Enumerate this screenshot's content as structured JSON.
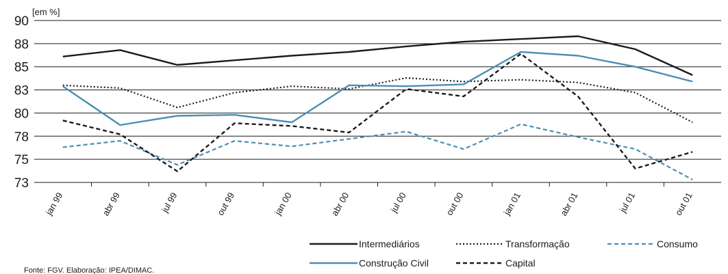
{
  "chart_data": {
    "type": "line",
    "unit_label": "[em %]",
    "categories": [
      "jan 99",
      "abr 99",
      "jul 99",
      "out 99",
      "jan 00",
      "abr 00",
      "jul 00",
      "out 00",
      "jan 01",
      "abr 01",
      "jul 01",
      "out 01"
    ],
    "ylim": [
      72.5,
      90
    ],
    "y_ticks": [
      90,
      88,
      85,
      83,
      80,
      78,
      75,
      73
    ],
    "y_tick_values": [
      90,
      87.5,
      85,
      82.5,
      80,
      77.5,
      75,
      72.5
    ],
    "grid": true,
    "series": [
      {
        "name": "Intermediários",
        "color": "#1a1a1a",
        "dash": "solid",
        "width": 2.4,
        "values": [
          86.1,
          86.8,
          85.2,
          85.7,
          86.2,
          86.6,
          87.2,
          87.7,
          88.0,
          88.3,
          86.9,
          84.1
        ]
      },
      {
        "name": "Transformação",
        "color": "#1a1a1a",
        "dash": "dotted",
        "width": 2.2,
        "values": [
          83.0,
          82.7,
          80.6,
          82.2,
          82.9,
          82.6,
          83.8,
          83.4,
          83.6,
          83.3,
          82.2,
          79.0
        ]
      },
      {
        "name": "Consumo",
        "color": "#4a8db3",
        "dash": "dashed",
        "width": 2.2,
        "values": [
          76.3,
          77.0,
          74.4,
          77.0,
          76.4,
          77.2,
          78.0,
          76.1,
          78.8,
          77.4,
          76.1,
          72.8
        ]
      },
      {
        "name": "Construção Civil",
        "color": "#4a8db3",
        "dash": "solid",
        "width": 2.4,
        "values": [
          82.9,
          78.7,
          79.7,
          79.8,
          79.0,
          83.0,
          82.9,
          83.1,
          86.6,
          86.2,
          85.0,
          83.4
        ]
      },
      {
        "name": "Capital",
        "color": "#1a1a1a",
        "dash": "dashed",
        "width": 2.4,
        "values": [
          79.2,
          77.7,
          73.7,
          78.9,
          78.6,
          77.9,
          82.6,
          81.8,
          86.4,
          81.8,
          74.0,
          75.8
        ]
      }
    ],
    "legend_position": "bottom"
  },
  "source": "Fonte: FGV. Elaboração: IPEA/DIMAC."
}
